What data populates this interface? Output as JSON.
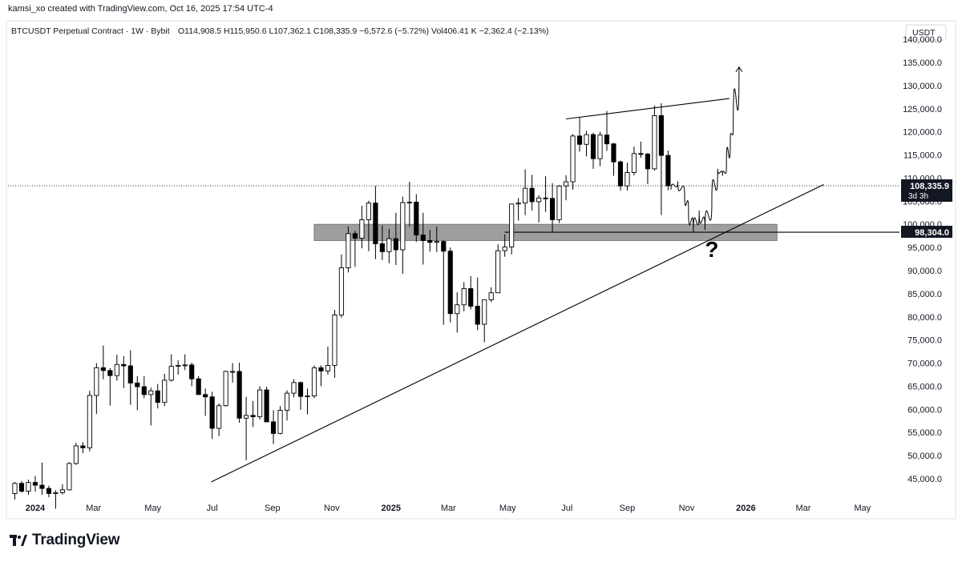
{
  "attribution": "kamsi_xo created with TradingView.com, Oct 16, 2025 17:54 UTC-4",
  "chart_info": {
    "symbol": "BTCUSDT Perpetual Contract · 1W · Bybit",
    "ohlc": "O114,908.5  H115,950.6  L107,362.1  C108,335.9  −6,572.6 (−5.72%)  Vol406.41 K  −2,362.4 (−2.13%)"
  },
  "currency_label": "USDT",
  "brand": {
    "name": "TradingView",
    "icon": "tradingview-logo-icon"
  },
  "colors": {
    "up_body": "#ffffff",
    "down_body": "#000000",
    "zone_fill": "#9e9e9e",
    "line": "#000000",
    "grid_text": "#131722"
  },
  "chart_data": {
    "type": "candlestick",
    "timeframe": "1W",
    "ylim": [
      40500,
      144000
    ],
    "yticks": [
      45000,
      50000,
      55000,
      60000,
      65000,
      70000,
      75000,
      80000,
      85000,
      90000,
      95000,
      100000,
      105000,
      110000,
      115000,
      120000,
      125000,
      130000,
      135000,
      140000
    ],
    "ytick_labels": [
      "45,000.0",
      "50,000.0",
      "55,000.0",
      "60,000.0",
      "65,000.0",
      "70,000.0",
      "75,000.0",
      "80,000.0",
      "85,000.0",
      "90,000.0",
      "95,000.0",
      "100,000.0",
      "105,000.0",
      "110,000.0",
      "115,000.0",
      "120,000.0",
      "125,000.0",
      "130,000.0",
      "135,000.0",
      "140,000.0"
    ],
    "xlim": [
      "2023-12-04",
      "2026-06-08"
    ],
    "xticks": [
      {
        "date": "2024-01-01",
        "label": "2024"
      },
      {
        "date": "2024-03-01",
        "label": "Mar"
      },
      {
        "date": "2024-05-01",
        "label": "May"
      },
      {
        "date": "2024-07-01",
        "label": "Jul"
      },
      {
        "date": "2024-09-01",
        "label": "Sep"
      },
      {
        "date": "2024-11-01",
        "label": "Nov"
      },
      {
        "date": "2025-01-01",
        "label": "2025"
      },
      {
        "date": "2025-03-01",
        "label": "Mar"
      },
      {
        "date": "2025-05-01",
        "label": "May"
      },
      {
        "date": "2025-07-01",
        "label": "Jul"
      },
      {
        "date": "2025-09-01",
        "label": "Sep"
      },
      {
        "date": "2025-11-01",
        "label": "Nov"
      },
      {
        "date": "2026-01-01",
        "label": "2026"
      },
      {
        "date": "2026-03-01",
        "label": "Mar"
      },
      {
        "date": "2026-05-01",
        "label": "May"
      }
    ],
    "candles": [
      {
        "t": "2023-12-11",
        "o": 41800,
        "h": 44300,
        "l": 40500,
        "c": 44000
      },
      {
        "t": "2023-12-18",
        "o": 44000,
        "h": 44500,
        "l": 42000,
        "c": 42300
      },
      {
        "t": "2023-12-25",
        "o": 42300,
        "h": 44800,
        "l": 41500,
        "c": 44200
      },
      {
        "t": "2024-01-01",
        "o": 44200,
        "h": 45600,
        "l": 42200,
        "c": 43600
      },
      {
        "t": "2024-01-08",
        "o": 43600,
        "h": 48500,
        "l": 41500,
        "c": 42900
      },
      {
        "t": "2024-01-15",
        "o": 42900,
        "h": 43500,
        "l": 41000,
        "c": 41800
      },
      {
        "t": "2024-01-22",
        "o": 41800,
        "h": 42500,
        "l": 38500,
        "c": 42000
      },
      {
        "t": "2024-01-29",
        "o": 42000,
        "h": 43800,
        "l": 41600,
        "c": 42600
      },
      {
        "t": "2024-02-05",
        "o": 42600,
        "h": 48600,
        "l": 42500,
        "c": 48300
      },
      {
        "t": "2024-02-12",
        "o": 48300,
        "h": 52800,
        "l": 48000,
        "c": 52100
      },
      {
        "t": "2024-02-19",
        "o": 52100,
        "h": 52900,
        "l": 50500,
        "c": 51700
      },
      {
        "t": "2024-02-26",
        "o": 51700,
        "h": 64000,
        "l": 50900,
        "c": 63000
      },
      {
        "t": "2024-03-04",
        "o": 63000,
        "h": 70000,
        "l": 59000,
        "c": 69000
      },
      {
        "t": "2024-03-11",
        "o": 69000,
        "h": 73800,
        "l": 66500,
        "c": 68400
      },
      {
        "t": "2024-03-18",
        "o": 68400,
        "h": 68900,
        "l": 60800,
        "c": 67300
      },
      {
        "t": "2024-03-25",
        "o": 67300,
        "h": 71800,
        "l": 66200,
        "c": 69700
      },
      {
        "t": "2024-04-01",
        "o": 69700,
        "h": 71500,
        "l": 64600,
        "c": 69400
      },
      {
        "t": "2024-04-08",
        "o": 69400,
        "h": 72800,
        "l": 61000,
        "c": 65700
      },
      {
        "t": "2024-04-15",
        "o": 65700,
        "h": 67200,
        "l": 59800,
        "c": 64900
      },
      {
        "t": "2024-04-22",
        "o": 64900,
        "h": 67200,
        "l": 62400,
        "c": 63200
      },
      {
        "t": "2024-04-29",
        "o": 63200,
        "h": 64700,
        "l": 56500,
        "c": 64000
      },
      {
        "t": "2024-05-06",
        "o": 64000,
        "h": 65500,
        "l": 60200,
        "c": 61500
      },
      {
        "t": "2024-05-13",
        "o": 61500,
        "h": 67700,
        "l": 60700,
        "c": 66300
      },
      {
        "t": "2024-05-20",
        "o": 66300,
        "h": 71900,
        "l": 66000,
        "c": 69300
      },
      {
        "t": "2024-05-27",
        "o": 69300,
        "h": 70600,
        "l": 67500,
        "c": 69500
      },
      {
        "t": "2024-06-03",
        "o": 69500,
        "h": 71900,
        "l": 68500,
        "c": 69600
      },
      {
        "t": "2024-06-10",
        "o": 69600,
        "h": 70100,
        "l": 65000,
        "c": 66600
      },
      {
        "t": "2024-06-17",
        "o": 66600,
        "h": 67200,
        "l": 63400,
        "c": 63200
      },
      {
        "t": "2024-06-24",
        "o": 63200,
        "h": 64500,
        "l": 58600,
        "c": 62700
      },
      {
        "t": "2024-07-01",
        "o": 62700,
        "h": 63800,
        "l": 53600,
        "c": 55900
      },
      {
        "t": "2024-07-08",
        "o": 55900,
        "h": 61300,
        "l": 54200,
        "c": 60800
      },
      {
        "t": "2024-07-15",
        "o": 60800,
        "h": 68400,
        "l": 60600,
        "c": 68200
      },
      {
        "t": "2024-07-22",
        "o": 68200,
        "h": 70000,
        "l": 65800,
        "c": 68200
      },
      {
        "t": "2024-07-29",
        "o": 68200,
        "h": 70100,
        "l": 57100,
        "c": 58100
      },
      {
        "t": "2024-08-05",
        "o": 58100,
        "h": 62700,
        "l": 49000,
        "c": 58700
      },
      {
        "t": "2024-08-12",
        "o": 58700,
        "h": 61800,
        "l": 56200,
        "c": 58400
      },
      {
        "t": "2024-08-19",
        "o": 58400,
        "h": 65000,
        "l": 57800,
        "c": 64200
      },
      {
        "t": "2024-08-26",
        "o": 64200,
        "h": 64900,
        "l": 57200,
        "c": 57300
      },
      {
        "t": "2024-09-02",
        "o": 57300,
        "h": 59800,
        "l": 52500,
        "c": 54800
      },
      {
        "t": "2024-09-09",
        "o": 54800,
        "h": 60700,
        "l": 54600,
        "c": 59800
      },
      {
        "t": "2024-09-16",
        "o": 59800,
        "h": 64100,
        "l": 57600,
        "c": 63500
      },
      {
        "t": "2024-09-23",
        "o": 63500,
        "h": 66500,
        "l": 62600,
        "c": 65800
      },
      {
        "t": "2024-09-30",
        "o": 65800,
        "h": 66000,
        "l": 59900,
        "c": 62800
      },
      {
        "t": "2024-10-07",
        "o": 62800,
        "h": 64500,
        "l": 58900,
        "c": 62900
      },
      {
        "t": "2024-10-14",
        "o": 62900,
        "h": 69500,
        "l": 62400,
        "c": 69000
      },
      {
        "t": "2024-10-21",
        "o": 69000,
        "h": 69500,
        "l": 65000,
        "c": 68300
      },
      {
        "t": "2024-10-28",
        "o": 68300,
        "h": 73600,
        "l": 67500,
        "c": 69500
      },
      {
        "t": "2024-11-04",
        "o": 69500,
        "h": 81500,
        "l": 66800,
        "c": 80400
      },
      {
        "t": "2024-11-11",
        "o": 80400,
        "h": 93500,
        "l": 79800,
        "c": 90600
      },
      {
        "t": "2024-11-18",
        "o": 90600,
        "h": 99600,
        "l": 89600,
        "c": 98000
      },
      {
        "t": "2024-11-25",
        "o": 98000,
        "h": 98600,
        "l": 90800,
        "c": 97000
      },
      {
        "t": "2024-12-02",
        "o": 97000,
        "h": 104000,
        "l": 94800,
        "c": 101000
      },
      {
        "t": "2024-12-09",
        "o": 101000,
        "h": 105100,
        "l": 94200,
        "c": 104600
      },
      {
        "t": "2024-12-16",
        "o": 104600,
        "h": 108300,
        "l": 92500,
        "c": 95800
      },
      {
        "t": "2024-12-23",
        "o": 95800,
        "h": 99800,
        "l": 92300,
        "c": 94100
      },
      {
        "t": "2024-12-30",
        "o": 94100,
        "h": 99000,
        "l": 91600,
        "c": 96900
      },
      {
        "t": "2025-01-06",
        "o": 96900,
        "h": 102500,
        "l": 91200,
        "c": 94500
      },
      {
        "t": "2025-01-13",
        "o": 94500,
        "h": 106000,
        "l": 89300,
        "c": 104700
      },
      {
        "t": "2025-01-20",
        "o": 104700,
        "h": 109200,
        "l": 99500,
        "c": 104800
      },
      {
        "t": "2025-01-27",
        "o": 104800,
        "h": 106500,
        "l": 96200,
        "c": 97700
      },
      {
        "t": "2025-02-03",
        "o": 97700,
        "h": 102500,
        "l": 91300,
        "c": 96500
      },
      {
        "t": "2025-02-10",
        "o": 96500,
        "h": 98800,
        "l": 94100,
        "c": 96100
      },
      {
        "t": "2025-02-17",
        "o": 96100,
        "h": 99500,
        "l": 94000,
        "c": 96300
      },
      {
        "t": "2025-02-24",
        "o": 96300,
        "h": 96500,
        "l": 78300,
        "c": 94200
      },
      {
        "t": "2025-03-03",
        "o": 94200,
        "h": 95000,
        "l": 78800,
        "c": 80700
      },
      {
        "t": "2025-03-10",
        "o": 80700,
        "h": 85300,
        "l": 76600,
        "c": 82600
      },
      {
        "t": "2025-03-17",
        "o": 82600,
        "h": 87500,
        "l": 81200,
        "c": 86100
      },
      {
        "t": "2025-03-24",
        "o": 86100,
        "h": 88800,
        "l": 81600,
        "c": 82300
      },
      {
        "t": "2025-03-31",
        "o": 82300,
        "h": 88500,
        "l": 77100,
        "c": 78400
      },
      {
        "t": "2025-04-07",
        "o": 78400,
        "h": 83700,
        "l": 74500,
        "c": 83700
      },
      {
        "t": "2025-04-14",
        "o": 83700,
        "h": 86400,
        "l": 83200,
        "c": 85200
      },
      {
        "t": "2025-04-21",
        "o": 85200,
        "h": 95700,
        "l": 85200,
        "c": 94300
      },
      {
        "t": "2025-04-28",
        "o": 94300,
        "h": 97800,
        "l": 93000,
        "c": 95100
      },
      {
        "t": "2025-05-05",
        "o": 95100,
        "h": 104300,
        "l": 93500,
        "c": 104400
      },
      {
        "t": "2025-05-12",
        "o": 104400,
        "h": 105700,
        "l": 100800,
        "c": 104600
      },
      {
        "t": "2025-05-19",
        "o": 104600,
        "h": 111900,
        "l": 102000,
        "c": 107800
      },
      {
        "t": "2025-05-26",
        "o": 107800,
        "h": 110700,
        "l": 103000,
        "c": 104900
      },
      {
        "t": "2025-06-02",
        "o": 104900,
        "h": 106300,
        "l": 100400,
        "c": 105700
      },
      {
        "t": "2025-06-09",
        "o": 105700,
        "h": 110400,
        "l": 102700,
        "c": 105600
      },
      {
        "t": "2025-06-16",
        "o": 105600,
        "h": 108900,
        "l": 98200,
        "c": 101000
      },
      {
        "t": "2025-06-23",
        "o": 101000,
        "h": 108500,
        "l": 100300,
        "c": 108300
      },
      {
        "t": "2025-06-30",
        "o": 108300,
        "h": 110600,
        "l": 105200,
        "c": 109200
      },
      {
        "t": "2025-07-07",
        "o": 109200,
        "h": 119500,
        "l": 107500,
        "c": 119100
      },
      {
        "t": "2025-07-14",
        "o": 119100,
        "h": 123200,
        "l": 115700,
        "c": 117300
      },
      {
        "t": "2025-07-21",
        "o": 117300,
        "h": 120200,
        "l": 114700,
        "c": 119400
      },
      {
        "t": "2025-07-28",
        "o": 119400,
        "h": 119800,
        "l": 112000,
        "c": 114200
      },
      {
        "t": "2025-08-04",
        "o": 114200,
        "h": 120000,
        "l": 112600,
        "c": 119300
      },
      {
        "t": "2025-08-11",
        "o": 119300,
        "h": 124500,
        "l": 115900,
        "c": 117400
      },
      {
        "t": "2025-08-18",
        "o": 117400,
        "h": 117600,
        "l": 110500,
        "c": 113500
      },
      {
        "t": "2025-08-25",
        "o": 113500,
        "h": 113800,
        "l": 107300,
        "c": 108300
      },
      {
        "t": "2025-09-01",
        "o": 108300,
        "h": 113300,
        "l": 107300,
        "c": 111200
      },
      {
        "t": "2025-09-08",
        "o": 111200,
        "h": 116800,
        "l": 110600,
        "c": 115300
      },
      {
        "t": "2025-09-15",
        "o": 115300,
        "h": 117900,
        "l": 114400,
        "c": 115200
      },
      {
        "t": "2025-09-22",
        "o": 115200,
        "h": 115400,
        "l": 108700,
        "c": 112000
      },
      {
        "t": "2025-09-29",
        "o": 112000,
        "h": 125700,
        "l": 111600,
        "c": 123500
      },
      {
        "t": "2025-10-06",
        "o": 123500,
        "h": 126200,
        "l": 102000,
        "c": 114900
      },
      {
        "t": "2025-10-13",
        "o": 114908.5,
        "h": 115950.6,
        "l": 107362.1,
        "c": 108335.9
      }
    ],
    "zone": {
      "from": "2024-10-14",
      "to": "2026-02-02",
      "low": 96500,
      "high": 100000
    },
    "lines": [
      {
        "name": "trendline",
        "p1": {
          "t": "2024-06-30",
          "v": 44300
        },
        "p2": {
          "t": "2026-03-22",
          "v": 108600
        }
      },
      {
        "name": "top-trendline",
        "p1": {
          "t": "2025-06-30",
          "v": 122800
        },
        "p2": {
          "t": "2025-12-15",
          "v": 127200
        }
      },
      {
        "name": "level-line",
        "p1": {
          "t": "2025-04-28",
          "v": 98304
        },
        "p2": {
          "t": "2026-06-08",
          "v": 98304
        }
      }
    ],
    "projection": [
      {
        "t": "2025-10-16",
        "v": 107500
      },
      {
        "t": "2025-10-23",
        "v": 109300
      },
      {
        "t": "2025-10-30",
        "v": 106200
      },
      {
        "t": "2025-11-03",
        "v": 103000
      },
      {
        "t": "2025-11-08",
        "v": 98304
      },
      {
        "t": "2025-11-14",
        "v": 103000
      },
      {
        "t": "2025-11-20",
        "v": 98800
      },
      {
        "t": "2025-11-27",
        "v": 105000
      },
      {
        "t": "2025-12-03",
        "v": 112000
      },
      {
        "t": "2025-12-08",
        "v": 110500
      },
      {
        "t": "2025-12-12",
        "v": 112000
      },
      {
        "t": "2025-12-16",
        "v": 119000
      },
      {
        "t": "2025-12-19",
        "v": 120000
      },
      {
        "t": "2025-12-25",
        "v": 134000
      }
    ],
    "question_mark": {
      "t": "2025-11-27",
      "v": 95000,
      "text": "?"
    },
    "current_price": {
      "value": 108335.9,
      "label": "108,335.9",
      "countdown": "3d 3h"
    },
    "level_label": {
      "value": 98304,
      "label": "98,304.0"
    }
  }
}
